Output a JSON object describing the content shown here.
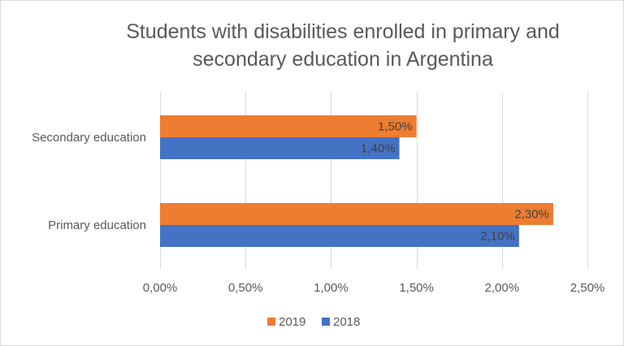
{
  "chart_data": {
    "type": "bar",
    "orientation": "horizontal",
    "title": "Students with disabilities enrolled in primary and secondary education in Argentina",
    "title_lines": [
      "Students with disabilities enrolled in primary and",
      "secondary education in Argentina"
    ],
    "categories": [
      "Secondary education",
      "Primary education"
    ],
    "series": [
      {
        "name": "2019",
        "color": "#ed7d31",
        "values": [
          1.5,
          2.3
        ],
        "labels": [
          "1,50%",
          "2,30%"
        ]
      },
      {
        "name": "2018",
        "color": "#4472c4",
        "values": [
          1.4,
          2.1
        ],
        "labels": [
          "1,40%",
          "2,10%"
        ]
      }
    ],
    "xlim": [
      0,
      2.5
    ],
    "xticks": [
      0,
      0.5,
      1.0,
      1.5,
      2.0,
      2.5
    ],
    "xtick_labels": [
      "0,00%",
      "0,50%",
      "1,00%",
      "1,50%",
      "2,00%",
      "2,50%"
    ],
    "xlabel": "",
    "ylabel": "",
    "grid": true,
    "legend_position": "bottom",
    "legend_order": [
      "2019",
      "2018"
    ]
  }
}
